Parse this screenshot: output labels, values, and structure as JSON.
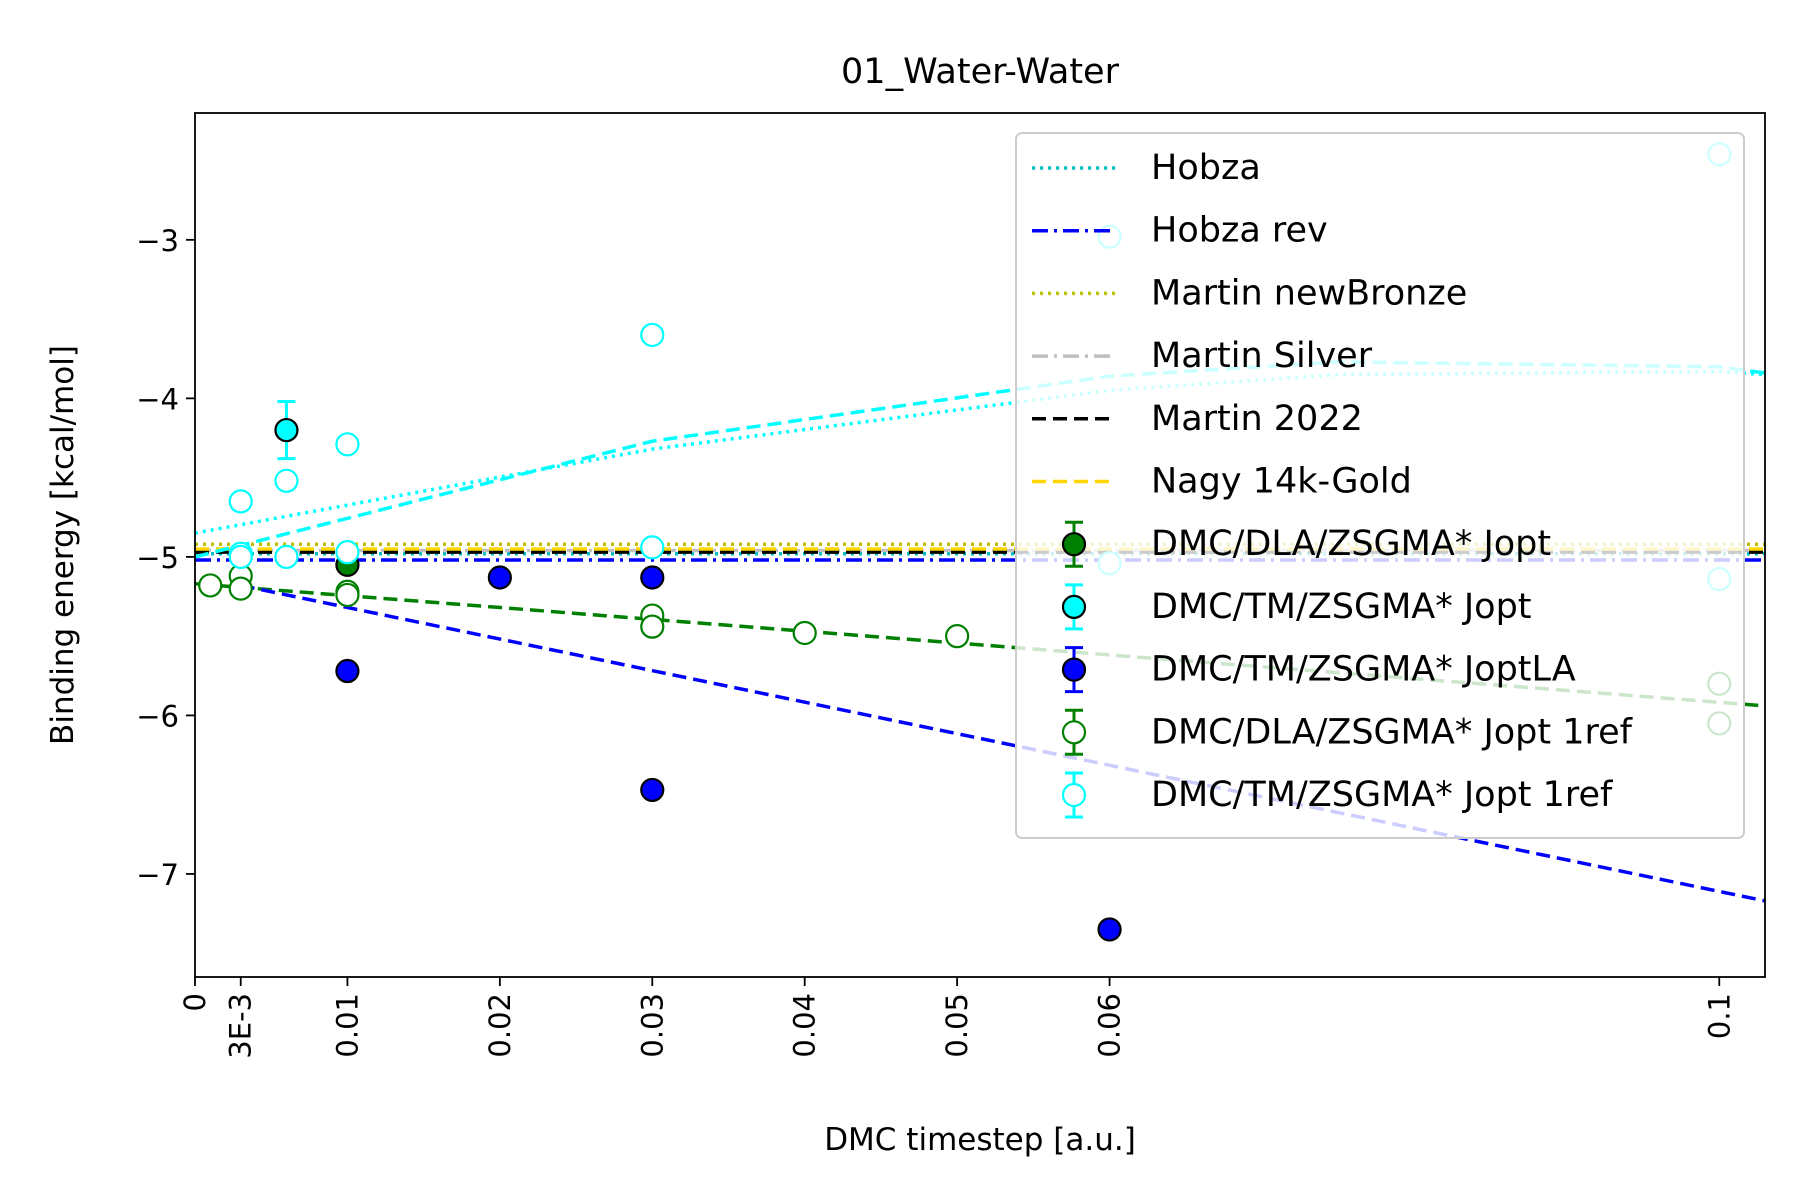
{
  "chart_data": {
    "type": "scatter",
    "title": "01_Water-Water",
    "xlabel": "DMC timestep [a.u.]",
    "ylabel": "Binding energy [kcal/mol]",
    "xlim": [
      0,
      0.103
    ],
    "ylim": [
      -7.65,
      -2.2
    ],
    "xticks": [
      {
        "value": 0,
        "label": "0"
      },
      {
        "value": 0.003,
        "label": "3E-3"
      },
      {
        "value": 0.01,
        "label": "0.01"
      },
      {
        "value": 0.02,
        "label": "0.02"
      },
      {
        "value": 0.03,
        "label": "0.03"
      },
      {
        "value": 0.04,
        "label": "0.04"
      },
      {
        "value": 0.05,
        "label": "0.05"
      },
      {
        "value": 0.06,
        "label": "0.06"
      },
      {
        "value": 0.1,
        "label": "0.1"
      }
    ],
    "yticks": [
      {
        "value": -3,
        "label": "−3"
      },
      {
        "value": -4,
        "label": "−4"
      },
      {
        "value": -5,
        "label": "−5"
      },
      {
        "value": -6,
        "label": "−6"
      },
      {
        "value": -7,
        "label": "−7"
      }
    ],
    "grid": false,
    "legend_position": "top-right",
    "reference_lines": [
      {
        "name": "Hobza",
        "value": -4.98,
        "color": "#00bfbf",
        "style": "dotted"
      },
      {
        "name": "Hobza rev",
        "value": -5.02,
        "color": "#0000ff",
        "style": "dashdot"
      },
      {
        "name": "Martin newBronze",
        "value": -4.92,
        "color": "#bfbf00",
        "style": "dotted"
      },
      {
        "name": "Martin Silver",
        "value": -4.96,
        "color": "#bfbfbf",
        "style": "dashdot"
      },
      {
        "name": "Martin 2022",
        "value": -4.97,
        "color": "#000000",
        "style": "dashed"
      },
      {
        "name": "Nagy 14k-Gold",
        "value": -4.95,
        "color": "#ffd700",
        "style": "dashed"
      }
    ],
    "series": [
      {
        "name": "DMC/DLA/ZSGMA* Jopt",
        "color": "#008000",
        "filled": true,
        "points": [
          [
            0.01,
            -5.05
          ]
        ]
      },
      {
        "name": "DMC/TM/ZSGMA* Jopt",
        "color": "#00ffff",
        "filled": true,
        "points": [
          [
            0.006,
            -4.2,
            0.18
          ]
        ]
      },
      {
        "name": "DMC/TM/ZSGMA* JoptLA",
        "color": "#0000ff",
        "filled": true,
        "points": [
          [
            0.01,
            -5.72
          ],
          [
            0.02,
            -5.13
          ],
          [
            0.03,
            -5.13
          ],
          [
            0.03,
            -6.47
          ],
          [
            0.06,
            -7.35
          ]
        ]
      },
      {
        "name": "DMC/DLA/ZSGMA* Jopt 1ref",
        "color": "#008000",
        "filled": false,
        "points": [
          [
            0.001,
            -5.18
          ],
          [
            0.003,
            -5.12
          ],
          [
            0.003,
            -5.2
          ],
          [
            0.01,
            -5.22
          ],
          [
            0.01,
            -5.24
          ],
          [
            0.03,
            -5.37
          ],
          [
            0.03,
            -5.44
          ],
          [
            0.04,
            -5.48
          ],
          [
            0.05,
            -5.5
          ],
          [
            0.1,
            -5.8
          ],
          [
            0.1,
            -6.05
          ]
        ]
      },
      {
        "name": "DMC/TM/ZSGMA* Jopt 1ref",
        "color": "#00ffff",
        "filled": false,
        "points": [
          [
            0.003,
            -4.65
          ],
          [
            0.003,
            -4.98
          ],
          [
            0.003,
            -5.0
          ],
          [
            0.006,
            -4.52
          ],
          [
            0.006,
            -5.0
          ],
          [
            0.01,
            -4.29
          ],
          [
            0.01,
            -4.97
          ],
          [
            0.03,
            -3.6
          ],
          [
            0.03,
            -4.94
          ],
          [
            0.06,
            -2.98
          ],
          [
            0.06,
            -5.04
          ],
          [
            0.1,
            -2.46
          ],
          [
            0.1,
            -5.14
          ]
        ]
      }
    ],
    "fits": [
      {
        "color": "#00ffff",
        "style": "dotted",
        "points": [
          [
            0,
            -4.85
          ],
          [
            0.03,
            -4.32
          ],
          [
            0.06,
            -3.95
          ],
          [
            0.075,
            -3.85
          ],
          [
            0.1,
            -3.83
          ],
          [
            0.103,
            -3.85
          ]
        ]
      },
      {
        "color": "#00ffff",
        "style": "dashed",
        "points": [
          [
            0,
            -5.0
          ],
          [
            0.03,
            -4.27
          ],
          [
            0.06,
            -3.86
          ],
          [
            0.075,
            -3.77
          ],
          [
            0.1,
            -3.8
          ],
          [
            0.103,
            -3.84
          ]
        ]
      },
      {
        "color": "#008000",
        "style": "dashed",
        "points": [
          [
            0,
            -5.17
          ],
          [
            0.103,
            -5.94
          ]
        ]
      },
      {
        "color": "#0000ff",
        "style": "dashed",
        "points": [
          [
            0.003,
            -5.18
          ],
          [
            0.103,
            -7.17
          ]
        ]
      }
    ]
  }
}
